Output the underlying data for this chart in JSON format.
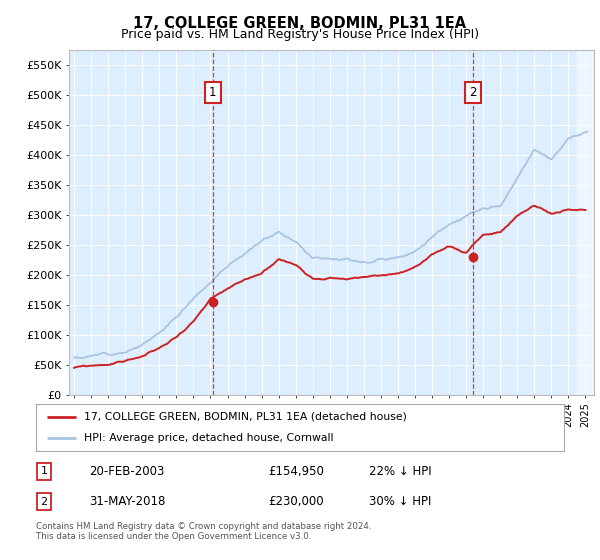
{
  "title": "17, COLLEGE GREEN, BODMIN, PL31 1EA",
  "subtitle": "Price paid vs. HM Land Registry's House Price Index (HPI)",
  "ylabel_ticks": [
    "£0",
    "£50K",
    "£100K",
    "£150K",
    "£200K",
    "£250K",
    "£300K",
    "£350K",
    "£400K",
    "£450K",
    "£500K",
    "£550K"
  ],
  "ytick_values": [
    0,
    50000,
    100000,
    150000,
    200000,
    250000,
    300000,
    350000,
    400000,
    450000,
    500000,
    550000
  ],
  "ylim": [
    0,
    575000
  ],
  "xlim_start": 1994.7,
  "xlim_end": 2025.5,
  "hpi_color": "#a8c4e0",
  "price_color": "#cc2222",
  "background_color": "#ddeeff",
  "sale1_x": 2003.13,
  "sale1_y": 154950,
  "sale2_x": 2018.42,
  "sale2_y": 230000,
  "legend1": "17, COLLEGE GREEN, BODMIN, PL31 1EA (detached house)",
  "legend2": "HPI: Average price, detached house, Cornwall",
  "ann1_label": "1",
  "ann2_label": "2",
  "ann1_date": "20-FEB-2003",
  "ann1_price": "£154,950",
  "ann1_hpi": "22% ↓ HPI",
  "ann2_date": "31-MAY-2018",
  "ann2_price": "£230,000",
  "ann2_hpi": "30% ↓ HPI",
  "footer": "Contains HM Land Registry data © Crown copyright and database right 2024.\nThis data is licensed under the Open Government Licence v3.0.",
  "title_fontsize": 10.5,
  "subtitle_fontsize": 9
}
